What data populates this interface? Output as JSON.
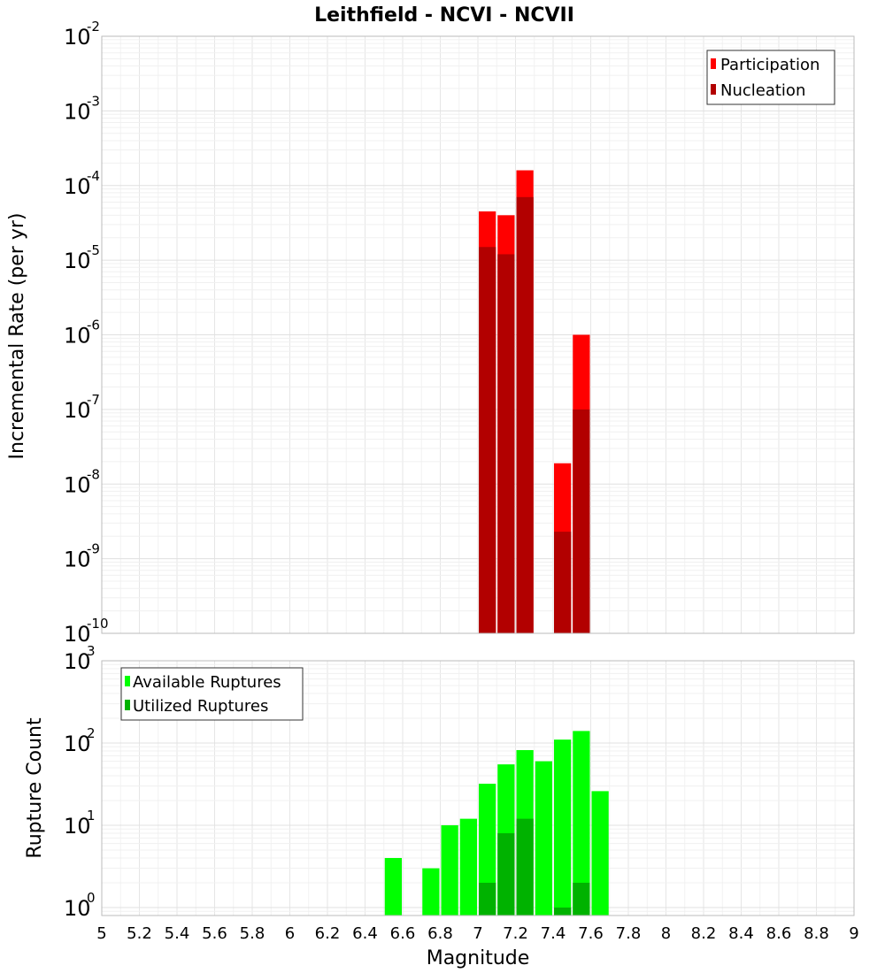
{
  "chart_data": [
    {
      "type": "bar",
      "title": "Leithfield - NCVI - NCVII",
      "xlabel": "",
      "ylabel": "Incremental Rate (per yr)",
      "yscale": "log",
      "ylim": [
        1e-10,
        0.01
      ],
      "xlim": [
        5,
        9
      ],
      "ytick_exponents": [
        "-10",
        "-9",
        "-8",
        "-7",
        "-6",
        "-5",
        "-4",
        "-3",
        "-2"
      ],
      "grid": true,
      "legend_position": "top-right",
      "bar_width": 0.1,
      "series": [
        {
          "name": "Participation",
          "color": "#ff0000",
          "x": [
            7.05,
            7.15,
            7.25,
            7.45,
            7.55
          ],
          "values": [
            4.5e-05,
            4e-05,
            0.00016,
            1.9e-08,
            1e-06
          ]
        },
        {
          "name": "Nucleation",
          "color": "#b20000",
          "x": [
            7.05,
            7.15,
            7.25,
            7.45,
            7.55
          ],
          "values": [
            1.5e-05,
            1.2e-05,
            7e-05,
            2.3e-09,
            1e-07
          ]
        }
      ]
    },
    {
      "type": "bar",
      "title": "",
      "xlabel": "Magnitude",
      "ylabel": "Rupture Count",
      "yscale": "log",
      "ylim": [
        0.8,
        1000
      ],
      "xlim": [
        5,
        9
      ],
      "ytick_exponents": [
        "0",
        "1",
        "2",
        "3"
      ],
      "xticks": [
        "5",
        "5.2",
        "5.4",
        "5.6",
        "5.8",
        "6",
        "6.2",
        "6.4",
        "6.6",
        "6.8",
        "7",
        "7.2",
        "7.4",
        "7.6",
        "7.8",
        "8",
        "8.2",
        "8.4",
        "8.6",
        "8.8",
        "9"
      ],
      "grid": true,
      "legend_position": "top-left",
      "bar_width": 0.1,
      "series": [
        {
          "name": "Available Ruptures",
          "color": "#00ff00",
          "x": [
            6.55,
            6.75,
            6.85,
            6.95,
            7.05,
            7.15,
            7.25,
            7.35,
            7.45,
            7.55,
            7.65
          ],
          "values": [
            4,
            3,
            10,
            12,
            32,
            55,
            82,
            60,
            110,
            140,
            26
          ]
        },
        {
          "name": "Utilized Ruptures",
          "color": "#00b200",
          "x": [
            7.05,
            7.15,
            7.25,
            7.45,
            7.55
          ],
          "values": [
            2,
            8,
            12,
            1,
            2
          ]
        }
      ]
    }
  ]
}
